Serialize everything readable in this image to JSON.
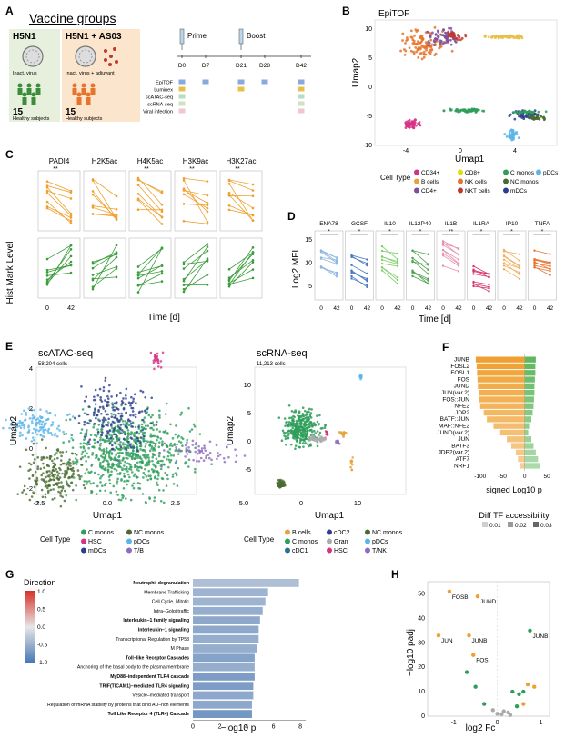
{
  "panels": {
    "A": {
      "letter": "A",
      "title": "Vaccine groups",
      "group1": {
        "name": "H5N1",
        "caption": "Inact. virus",
        "count": "15",
        "subjects": "Healthy subjects"
      },
      "group2": {
        "name": "H5N1 + AS03",
        "caption": "Inact. virus + adjuvant",
        "count": "15",
        "subjects": "Healthy subjects"
      },
      "prime_label": "Prime",
      "boost_label": "Boost",
      "days": [
        "D0",
        "D7",
        "D21",
        "D28",
        "D42"
      ],
      "assays": [
        "EpiTOF",
        "Luminex",
        "scATAC-seq",
        "scRNA-seq",
        "Viral infection"
      ]
    },
    "B": {
      "letter": "B",
      "title": "EpiTOF",
      "xlabel": "Umap1",
      "ylabel": "Umap2",
      "xticks": [
        "-4",
        "0",
        "4"
      ],
      "yticks": [
        "10",
        "5",
        "0",
        "-5",
        "-10"
      ],
      "legend_title": "Cell Type",
      "legend": [
        {
          "label": "CD34+",
          "color": "#d63384"
        },
        {
          "label": "B cells",
          "color": "#e6a23c"
        },
        {
          "label": "CD4+",
          "color": "#7b4fa0"
        },
        {
          "label": "CD8+",
          "color": "#e0e000"
        },
        {
          "label": "NK cells",
          "color": "#e8732a"
        },
        {
          "label": "NKT cells",
          "color": "#c0392b"
        },
        {
          "label": "C monos",
          "color": "#2e9e5b"
        },
        {
          "label": "NC monos",
          "color": "#4a6b2f"
        },
        {
          "label": "mDCs",
          "color": "#2c3e8f"
        },
        {
          "label": "pDCs",
          "color": "#5bb5e8"
        }
      ]
    },
    "C": {
      "letter": "C",
      "marks": [
        "PADI4",
        "H2K5ac",
        "H4K5ac",
        "H3K9ac",
        "H3K27ac"
      ],
      "stars": [
        "**",
        "",
        "**",
        "**",
        "**"
      ],
      "ylabel": "Hist Mark Level",
      "xlabel": "Time [d]",
      "xticks": [
        "0",
        "42"
      ]
    },
    "D": {
      "letter": "D",
      "cytokines": [
        "ENA78",
        "GCSF",
        "IL10",
        "IL12P40",
        "IL1B",
        "IL1RA",
        "IP10",
        "TNFA"
      ],
      "stars": [
        "*",
        "*",
        "*",
        "*",
        "**",
        "*",
        "*",
        "*"
      ],
      "ylabel": "Log2 MFI",
      "xlabel": "Time [d]",
      "yticks": [
        "15",
        "10",
        "5"
      ],
      "xticks": [
        "0",
        "42"
      ]
    },
    "E": {
      "letter": "E",
      "atac": {
        "title": "scATAC-seq",
        "cells": "58,204 cells",
        "xlabel": "Umap1",
        "ylabel": "Umap2",
        "xticks": [
          "-2.5",
          "0.0",
          "2.5",
          "5.0"
        ],
        "yticks": [
          "4",
          "2",
          "0",
          "-2"
        ]
      },
      "rna": {
        "title": "scRNA-seq",
        "cells": "11,213 cells",
        "xlabel": "Umap1",
        "ylabel": "Umap2",
        "xticks": [
          "0",
          "10"
        ],
        "yticks": [
          "10",
          "5",
          "0",
          "-5"
        ]
      },
      "legend_title": "Cell Type",
      "atac_legend": [
        {
          "label": "C monos",
          "color": "#2e9e5b"
        },
        {
          "label": "HSC",
          "color": "#d63384"
        },
        {
          "label": "mDCs",
          "color": "#2c3e8f"
        },
        {
          "label": "NC monos",
          "color": "#4a6b2f"
        },
        {
          "label": "pDCs",
          "color": "#5bb5e8"
        },
        {
          "label": "T/B",
          "color": "#8e6bbf"
        }
      ],
      "rna_legend": [
        {
          "label": "B cells",
          "color": "#e6a23c"
        },
        {
          "label": "C monos",
          "color": "#2e9e5b"
        },
        {
          "label": "cDC1",
          "color": "#2c6f8f"
        },
        {
          "label": "cDC2",
          "color": "#2c3e8f"
        },
        {
          "label": "Gran",
          "color": "#aaaaaa"
        },
        {
          "label": "HSC",
          "color": "#d63384"
        },
        {
          "label": "NC monos",
          "color": "#4a6b2f"
        },
        {
          "label": "pDCs",
          "color": "#5bb5e8"
        },
        {
          "label": "T/NK",
          "color": "#8e6bbf"
        }
      ]
    },
    "F": {
      "letter": "F",
      "xlabel": "signed Log10 p",
      "xticks": [
        "-100",
        "-50",
        "0",
        "50"
      ],
      "legend_title": "Diff TF accessibility",
      "legend": [
        {
          "label": "0.01",
          "color": "#cfcfcf"
        },
        {
          "label": "0.02",
          "color": "#9a9a9a"
        },
        {
          "label": "0.03",
          "color": "#666666"
        }
      ]
    },
    "G": {
      "letter": "G",
      "legend_title": "Direction",
      "legend_ticks": [
        "1.0",
        "0.5",
        "0.0",
        "-0.5",
        "-1.0"
      ],
      "xlabel": "−log10 p",
      "xticks": [
        "0",
        "2",
        "4",
        "6",
        "8"
      ]
    },
    "H": {
      "letter": "H",
      "xlabel": "log2 Fc",
      "ylabel": "−log10 padj",
      "xticks": [
        "-1",
        "0",
        "1"
      ],
      "yticks": [
        "0",
        "10",
        "20",
        "30",
        "40",
        "50"
      ]
    }
  },
  "chart_data": [
    {
      "type": "bar",
      "panel": "F",
      "orientation": "horizontal",
      "categories": [
        "JUNB",
        "FOSL2",
        "FOSL1",
        "FOS",
        "JUND",
        "JUN(var.2)",
        "FOS::JUN",
        "NFE2",
        "JDP2",
        "BATF::JUN",
        "MAF::NFE2",
        "JUND(var.2)",
        "JUN",
        "BATF3",
        "JDP2(var.2)",
        "ATF7",
        "NRF1"
      ],
      "series": [
        {
          "values": [
            -110,
            -108,
            -107,
            -106,
            -105,
            -103,
            -102,
            -100,
            -92,
            -85,
            -70,
            -55,
            -40,
            -30,
            -20,
            -15,
            -10
          ],
          "color": "#f0a030"
        },
        {
          "values": [
            25,
            24,
            24,
            23,
            22,
            22,
            21,
            20,
            18,
            15,
            10,
            8,
            15,
            20,
            25,
            30,
            35
          ],
          "color": "#5fb85f"
        }
      ],
      "xlim": [
        -120,
        60
      ]
    },
    {
      "type": "bar",
      "panel": "G",
      "orientation": "horizontal",
      "categories": [
        "Neutrophil degranulation",
        "Membrane Trafficking",
        "Cell Cycle, Mitotic",
        "Intra–Golgi traffic",
        "Interleukin–1 family signaling",
        "Interleukin–1 signaling",
        "Transcriptional Regulation by TP53",
        "M Phase",
        "Toll–like Receptor Cascades",
        "Anchoring of the basal body to the plasma membrane",
        "MyD88–independent TLR4 cascade",
        "TRIF(TICAM1)–mediated TLR4 signaling",
        "Vesicle–mediated transport",
        "Regulation of mRNA stability by proteins that bind AU–rich elements",
        "Toll Like Receptor 4 (TLR4) Cascade"
      ],
      "bold": [
        true,
        false,
        false,
        false,
        true,
        true,
        false,
        false,
        true,
        false,
        true,
        true,
        false,
        false,
        true
      ],
      "values": [
        7.9,
        5.6,
        5.4,
        5.2,
        5.0,
        4.9,
        4.9,
        4.8,
        4.6,
        4.6,
        4.6,
        4.5,
        4.5,
        4.4,
        4.4
      ],
      "direction": [
        -0.35,
        -0.45,
        -0.45,
        -0.5,
        -0.55,
        -0.55,
        -0.5,
        -0.5,
        -0.6,
        -0.5,
        -0.65,
        -0.65,
        -0.55,
        -0.55,
        -0.7
      ],
      "xlim": [
        0,
        8.4
      ]
    },
    {
      "type": "scatter",
      "panel": "H",
      "points": [
        {
          "x": -1.1,
          "y": 51,
          "color": "#f0a030",
          "label": "FOSB"
        },
        {
          "x": -0.45,
          "y": 49,
          "color": "#f0a030",
          "label": "JUND"
        },
        {
          "x": -1.35,
          "y": 33,
          "color": "#f0a030",
          "label": "JUN"
        },
        {
          "x": -0.65,
          "y": 33,
          "color": "#f0a030",
          "label": "JUNB"
        },
        {
          "x": 0.75,
          "y": 35,
          "color": "#2e9e5b",
          "label": "JUNB"
        },
        {
          "x": -0.55,
          "y": 25,
          "color": "#f0a030",
          "label": "FOS"
        },
        {
          "x": -0.7,
          "y": 18,
          "color": "#2e9e5b",
          "label": ""
        },
        {
          "x": -0.5,
          "y": 12,
          "color": "#2e9e5b",
          "label": ""
        },
        {
          "x": -0.3,
          "y": 5,
          "color": "#2e9e5b",
          "label": ""
        },
        {
          "x": 0.35,
          "y": 10,
          "color": "#2e9e5b",
          "label": ""
        },
        {
          "x": 0.5,
          "y": 9,
          "color": "#2e9e5b",
          "label": ""
        },
        {
          "x": 0.6,
          "y": 10,
          "color": "#2e9e5b",
          "label": ""
        },
        {
          "x": 0.7,
          "y": 13,
          "color": "#f0a030",
          "label": ""
        },
        {
          "x": 0.85,
          "y": 12,
          "color": "#f0a030",
          "label": ""
        },
        {
          "x": 0.6,
          "y": 5,
          "color": "#f0a030",
          "label": ""
        },
        {
          "x": 0.45,
          "y": 4,
          "color": "#2e9e5b",
          "label": ""
        },
        {
          "x": 0.15,
          "y": 2,
          "color": "#aaaaaa",
          "label": ""
        },
        {
          "x": 0.0,
          "y": 1,
          "color": "#aaaaaa",
          "label": ""
        },
        {
          "x": 0.25,
          "y": 1.5,
          "color": "#aaaaaa",
          "label": ""
        },
        {
          "x": -0.1,
          "y": 2.5,
          "color": "#aaaaaa",
          "label": ""
        },
        {
          "x": 0.3,
          "y": 0.5,
          "color": "#aaaaaa",
          "label": ""
        },
        {
          "x": 0.1,
          "y": 0.8,
          "color": "#aaaaaa",
          "label": ""
        }
      ],
      "xlim": [
        -1.6,
        1.2
      ],
      "ylim": [
        0,
        55
      ]
    }
  ]
}
